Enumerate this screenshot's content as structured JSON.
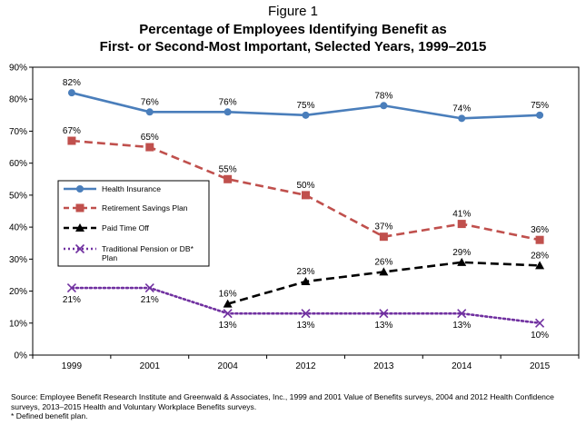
{
  "figure_label": "Figure 1",
  "title_lines": [
    "Percentage of Employees Identifying Benefit as",
    "First- or Second-Most Important, Selected Years, 1999–2015"
  ],
  "source_lines": [
    "Source: Employee Benefit Research Institute and Greenwald & Associates, Inc., 1999 and 2001 Value of Benefits surveys, 2004 and 2012 Health Confidence",
    "surveys, 2013–2015 Health and Voluntary Workplace Benefits surveys.",
    "* Defined benefit plan."
  ],
  "chart_data": {
    "type": "line",
    "title": "Percentage of Employees Identifying Benefit as First- or Second-Most Important, Selected Years, 1999–2015",
    "categories": [
      "1999",
      "2001",
      "2004",
      "2012",
      "2013",
      "2014",
      "2015"
    ],
    "ylim": [
      0,
      90
    ],
    "yticks": [
      0,
      10,
      20,
      30,
      40,
      50,
      60,
      70,
      80,
      90
    ],
    "ytick_labels": [
      "0%",
      "10%",
      "20%",
      "30%",
      "40%",
      "50%",
      "60%",
      "70%",
      "80%",
      "90%"
    ],
    "grid": false,
    "legend_position": "left-middle",
    "series": [
      {
        "name": "Health Insurance",
        "values": [
          82,
          76,
          76,
          75,
          78,
          74,
          75
        ],
        "labels": [
          "82%",
          "76%",
          "76%",
          "75%",
          "78%",
          "74%",
          "75%"
        ],
        "label_pos": [
          "above",
          "above",
          "above",
          "above",
          "above",
          "above",
          "above"
        ],
        "color": "#4a7ebb",
        "dash": "solid",
        "marker": "circle"
      },
      {
        "name": "Retirement Savings Plan",
        "values": [
          67,
          65,
          55,
          50,
          37,
          41,
          36
        ],
        "labels": [
          "67%",
          "65%",
          "55%",
          "50%",
          "37%",
          "41%",
          "36%"
        ],
        "label_pos": [
          "above",
          "above",
          "above",
          "above",
          "above",
          "above",
          "above"
        ],
        "color": "#c0504d",
        "dash": "dashed",
        "marker": "square"
      },
      {
        "name": "Paid Time Off",
        "values": [
          null,
          null,
          16,
          23,
          26,
          29,
          28
        ],
        "labels": [
          null,
          null,
          "16%",
          "23%",
          "26%",
          "29%",
          "28%"
        ],
        "label_pos": [
          "above",
          "above",
          "above",
          "above",
          "above",
          "above",
          "above"
        ],
        "color": "#000000",
        "dash": "dashed",
        "marker": "triangle"
      },
      {
        "name": "Traditional Pension or DB* Plan",
        "legend_lines": [
          "Traditional Pension or DB*",
          "Plan"
        ],
        "values": [
          21,
          21,
          13,
          13,
          13,
          13,
          10
        ],
        "labels": [
          "21%",
          "21%",
          "13%",
          "13%",
          "13%",
          "13%",
          "10%"
        ],
        "label_pos": [
          "below",
          "below",
          "below",
          "below",
          "below",
          "below",
          "below"
        ],
        "color": "#7030a0",
        "dash": "dotted",
        "marker": "x"
      }
    ]
  }
}
